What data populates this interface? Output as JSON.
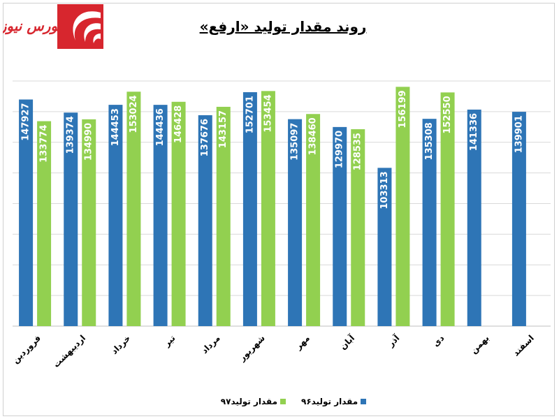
{
  "brand": {
    "logo_text": "بورس نیوز",
    "logo_color": "#d7262e"
  },
  "colors": {
    "series96": "#2e75b6",
    "series97": "#92d050",
    "grid": "#d9d9d9"
  },
  "chart_data": {
    "type": "bar",
    "title": "روند مقدار تولید «ارفع»",
    "categories": [
      "فروردین",
      "اردیبهشت",
      "خرداد",
      "تیر",
      "مرداد",
      "شهریور",
      "مهر",
      "آبان",
      "آذر",
      "دی",
      "بهمن",
      "اسفند"
    ],
    "series": [
      {
        "name": "مقدار تولید۹۶",
        "color": "#2e75b6",
        "values": [
          147927,
          139374,
          144453,
          144436,
          137676,
          152701,
          135097,
          129970,
          103313,
          135308,
          141336,
          139901
        ]
      },
      {
        "name": "مقدار تولید۹۷",
        "color": "#92d050",
        "values": [
          133774,
          134990,
          153024,
          146428,
          143157,
          153454,
          138460,
          128535,
          156199,
          152550,
          null,
          null
        ]
      }
    ],
    "ylim": [
      0,
      160000
    ],
    "grid": true,
    "legend": "bottom"
  }
}
